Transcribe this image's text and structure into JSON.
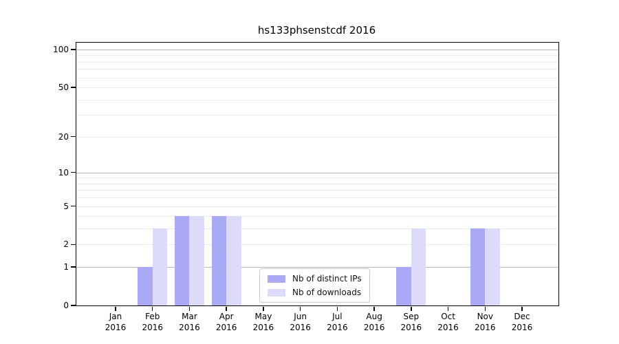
{
  "chart_data": {
    "type": "bar",
    "title": "hs133phsenstcdf 2016",
    "categories": [
      "Jan",
      "Feb",
      "Mar",
      "Apr",
      "May",
      "Jun",
      "Jul",
      "Aug",
      "Sep",
      "Oct",
      "Nov",
      "Dec"
    ],
    "year": "2016",
    "series": [
      {
        "name": "Nb of distinct IPs",
        "color": "#a9a9f6",
        "values": [
          0,
          1,
          4,
          4,
          0,
          0,
          0,
          0,
          1,
          0,
          3,
          0
        ]
      },
      {
        "name": "Nb of downloads",
        "color": "#dcdcfa",
        "values": [
          0,
          3,
          4,
          4,
          0,
          0,
          0,
          0,
          3,
          0,
          3,
          0
        ]
      }
    ],
    "yscale": "log1p",
    "ylim": [
      0,
      113
    ],
    "yticks": [
      0,
      1,
      2,
      5,
      10,
      20,
      50,
      100
    ],
    "grid": {
      "major": [
        1,
        10,
        100
      ],
      "minor": [
        2,
        3,
        4,
        5,
        6,
        7,
        8,
        9,
        20,
        30,
        40,
        50,
        60,
        70,
        80,
        90
      ],
      "major_color": "#b6b6b6",
      "minor_color": "#ececec"
    },
    "legend": {
      "position": "lower-center",
      "entries": [
        "Nb of distinct IPs",
        "Nb of downloads"
      ]
    },
    "axis_color": "#000000",
    "background_color": "#ffffff"
  }
}
